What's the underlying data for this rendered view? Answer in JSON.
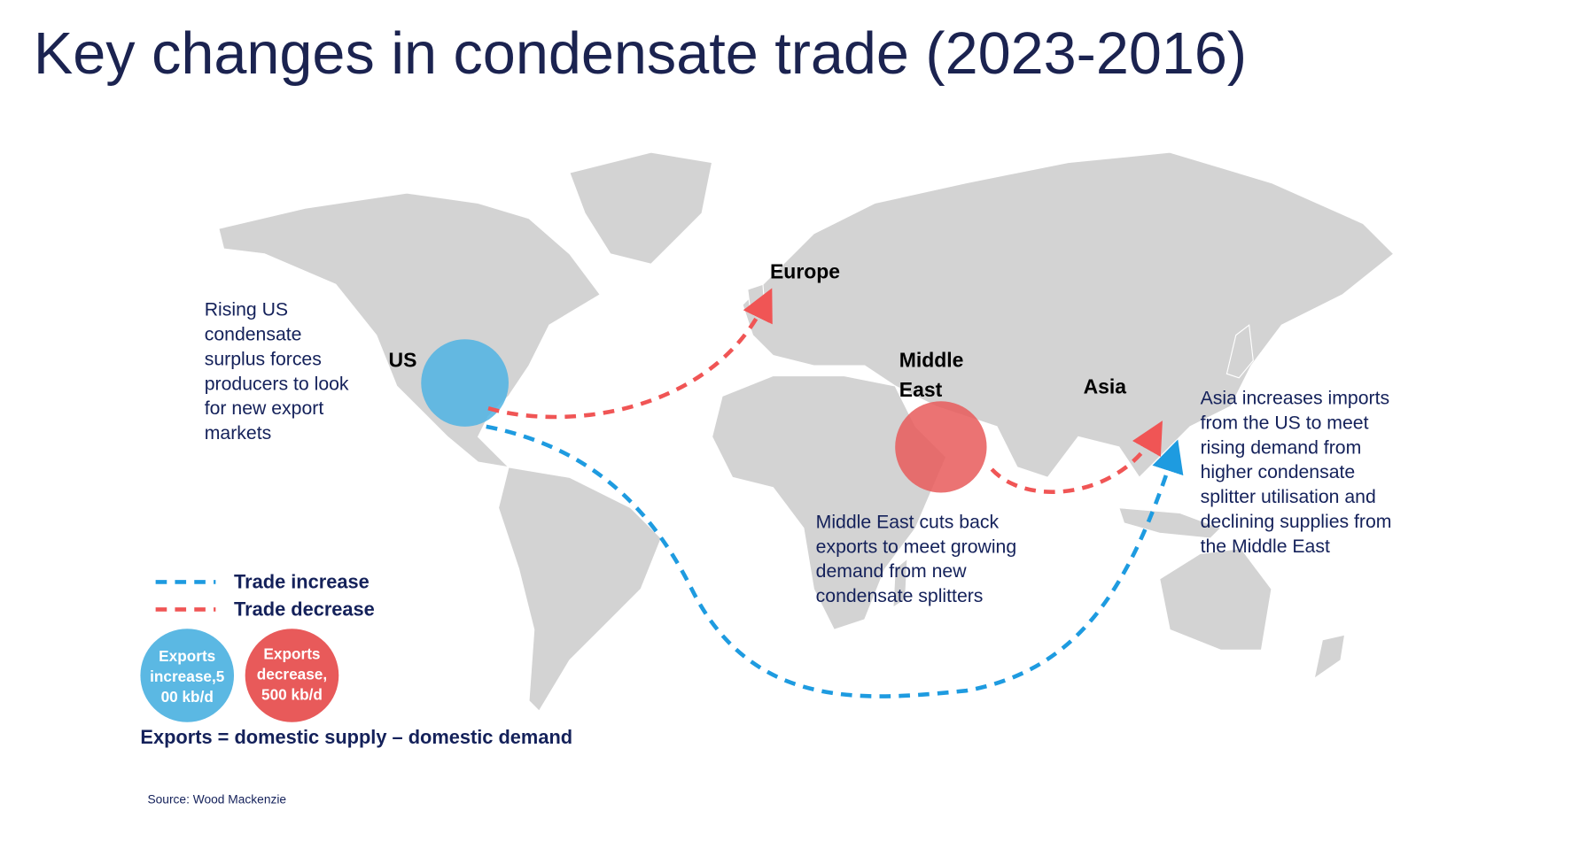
{
  "header": {
    "title": "Key changes in condensate trade (2023-2016)"
  },
  "map": {
    "labels": {
      "europe": "Europe",
      "us": "US",
      "middle_east": [
        "Middle",
        "East"
      ],
      "asia": "Asia"
    },
    "notes": {
      "us": [
        "Rising US",
        "condensate",
        "surplus forces",
        "producers to look",
        "for new export",
        "markets"
      ],
      "middle_east": [
        "Middle East cuts back",
        "exports to meet growing",
        "demand from new",
        "condensate splitters"
      ],
      "asia": [
        "Asia increases imports",
        "from the US to meet",
        "rising demand from",
        "higher condensate",
        "splitter utilisation and",
        "declining supplies from",
        "the Middle East"
      ]
    }
  },
  "legend": {
    "increase": "Trade increase",
    "decrease": "Trade decrease",
    "bubble_increase": [
      "Exports",
      "increase,5",
      "00 kb/d"
    ],
    "bubble_decrease": [
      "Exports",
      "decrease,",
      "500 kb/d"
    ],
    "formula": "Exports = domestic supply – domestic demand"
  },
  "footer": {
    "source": "Source: Wood Mackenzie"
  }
}
